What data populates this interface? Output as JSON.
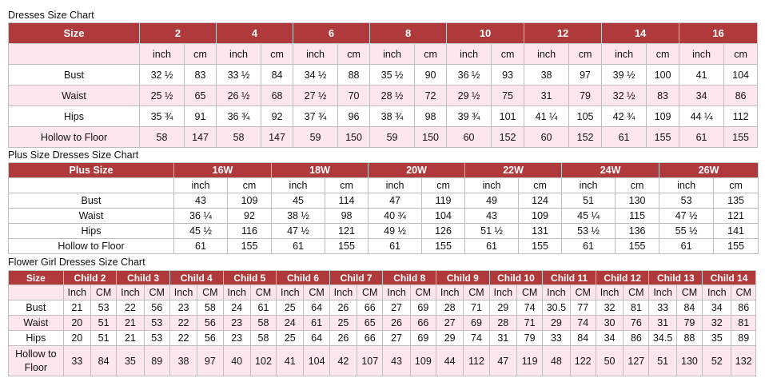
{
  "sections": [
    {
      "title": "Dresses Size Chart",
      "header_label": "Size",
      "sizes": [
        "2",
        "4",
        "6",
        "8",
        "10",
        "12",
        "14",
        "16"
      ],
      "units": [
        "inch",
        "cm"
      ],
      "rows": [
        {
          "label": "Bust",
          "values": [
            "32 ½",
            "83",
            "33 ½",
            "84",
            "34 ½",
            "88",
            "35 ½",
            "90",
            "36 ½",
            "93",
            "38",
            "97",
            "39 ½",
            "100",
            "41",
            "104"
          ]
        },
        {
          "label": "Waist",
          "values": [
            "25 ½",
            "65",
            "26 ½",
            "68",
            "27 ½",
            "70",
            "28 ½",
            "72",
            "29 ½",
            "75",
            "31",
            "79",
            "32 ½",
            "83",
            "34",
            "86"
          ]
        },
        {
          "label": "Hips",
          "values": [
            "35 ¾",
            "91",
            "36 ¾",
            "92",
            "37 ¾",
            "96",
            "38 ¾",
            "98",
            "39 ¾",
            "101",
            "41 ¼",
            "105",
            "42 ¾",
            "109",
            "44 ¼",
            "112"
          ]
        },
        {
          "label": "Hollow to Floor",
          "values": [
            "58",
            "147",
            "58",
            "147",
            "59",
            "150",
            "59",
            "150",
            "60",
            "152",
            "60",
            "152",
            "61",
            "155",
            "61",
            "155"
          ]
        }
      ]
    },
    {
      "title": "Plus Size Dresses Size Chart",
      "header_label": "Plus Size",
      "sizes": [
        "16W",
        "18W",
        "20W",
        "22W",
        "24W",
        "26W"
      ],
      "units": [
        "inch",
        "cm"
      ],
      "rows": [
        {
          "label": "Bust",
          "values": [
            "43",
            "109",
            "45",
            "114",
            "47",
            "119",
            "49",
            "124",
            "51",
            "130",
            "53",
            "135"
          ]
        },
        {
          "label": "Waist",
          "values": [
            "36 ¼",
            "92",
            "38 ½",
            "98",
            "40 ¾",
            "104",
            "43",
            "109",
            "45 ¼",
            "115",
            "47 ½",
            "121"
          ]
        },
        {
          "label": "Hips",
          "values": [
            "45 ½",
            "116",
            "47 ½",
            "121",
            "49 ½",
            "126",
            "51 ½",
            "131",
            "53 ½",
            "136",
            "55 ½",
            "141"
          ]
        },
        {
          "label": "Hollow to Floor",
          "values": [
            "61",
            "155",
            "61",
            "155",
            "61",
            "155",
            "61",
            "155",
            "61",
            "155",
            "61",
            "155"
          ]
        }
      ]
    },
    {
      "title": "Flower Girl Dresses Size Chart",
      "header_label": "Size",
      "sizes": [
        "Child 2",
        "Child 3",
        "Child 4",
        "Child 5",
        "Child 6",
        "Child 7",
        "Child 8",
        "Child 9",
        "Child 10",
        "Child 11",
        "Child 12",
        "Child 13",
        "Child 14"
      ],
      "units": [
        "Inch",
        "CM"
      ],
      "rows": [
        {
          "label": "Bust",
          "values": [
            "21",
            "53",
            "22",
            "56",
            "23",
            "58",
            "24",
            "61",
            "25",
            "64",
            "26",
            "66",
            "27",
            "69",
            "28",
            "71",
            "29",
            "74",
            "30.5",
            "77",
            "32",
            "81",
            "33",
            "84",
            "34",
            "86"
          ]
        },
        {
          "label": "Waist",
          "values": [
            "20",
            "51",
            "21",
            "53",
            "22",
            "56",
            "23",
            "58",
            "24",
            "61",
            "25",
            "65",
            "26",
            "66",
            "27",
            "69",
            "28",
            "71",
            "29",
            "74",
            "30",
            "76",
            "31",
            "79",
            "32",
            "81"
          ]
        },
        {
          "label": "Hips",
          "values": [
            "20",
            "51",
            "21",
            "53",
            "22",
            "56",
            "23",
            "58",
            "25",
            "64",
            "26",
            "66",
            "27",
            "69",
            "29",
            "74",
            "31",
            "79",
            "33",
            "84",
            "34",
            "86",
            "34.5",
            "88",
            "35",
            "89"
          ]
        },
        {
          "label": "Hollow to Floor",
          "values": [
            "33",
            "84",
            "35",
            "89",
            "38",
            "97",
            "40",
            "102",
            "41",
            "104",
            "42",
            "107",
            "43",
            "109",
            "44",
            "112",
            "47",
            "119",
            "48",
            "122",
            "50",
            "127",
            "51",
            "130",
            "52",
            "132"
          ]
        }
      ]
    }
  ],
  "colors": {
    "header_bg": "#b0393b",
    "header_text": "#ffffff",
    "stripe_bg": "#fde6ec",
    "border": "#bdbdbd"
  }
}
